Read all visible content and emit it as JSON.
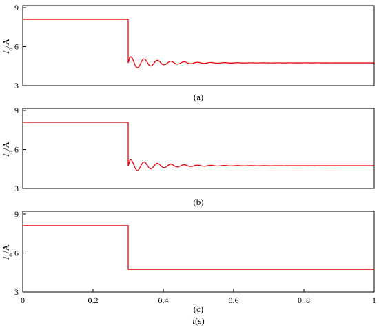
{
  "colors": {
    "trace": "#e8000b",
    "axes": "#000000"
  },
  "chart_data": [
    {
      "type": "line",
      "panel_label": "(a)",
      "ylabel": {
        "main": "I",
        "sub": "o",
        "unit": "/A"
      },
      "yticks": [
        "9",
        "6",
        "3"
      ],
      "ylim": [
        3,
        9
      ],
      "xlim": [
        0,
        1
      ],
      "step": {
        "t_step": 0.3,
        "before": 8.1,
        "after": 4.75
      },
      "oscillation": {
        "first_overshoot": 5.35,
        "first_undershoot": 4.3,
        "period": 0.038,
        "decay": 12
      },
      "grid": false
    },
    {
      "type": "line",
      "panel_label": "(b)",
      "ylabel": {
        "main": "I",
        "sub": "o",
        "unit": "/A"
      },
      "yticks": [
        "9",
        "6",
        "3"
      ],
      "ylim": [
        3,
        9
      ],
      "xlim": [
        0,
        1
      ],
      "step": {
        "t_step": 0.3,
        "before": 8.1,
        "after": 4.75
      },
      "oscillation": {
        "first_overshoot": 5.35,
        "first_undershoot": 4.35,
        "period": 0.038,
        "decay": 12
      },
      "grid": false
    },
    {
      "type": "line",
      "panel_label": "(c)",
      "ylabel": {
        "main": "I",
        "sub": "o",
        "unit": "/A"
      },
      "yticks": [
        "9",
        "6",
        "3"
      ],
      "xticks": [
        "0",
        "0.2",
        "0.4",
        "0.6",
        "0..8",
        "1"
      ],
      "ylim": [
        3,
        9
      ],
      "xlim": [
        0,
        1
      ],
      "xlabel": {
        "main": "t",
        "unit": "(s)"
      },
      "step": {
        "t_step": 0.3,
        "before": 8.1,
        "after": 4.75
      },
      "oscillation": null,
      "grid": false
    }
  ]
}
